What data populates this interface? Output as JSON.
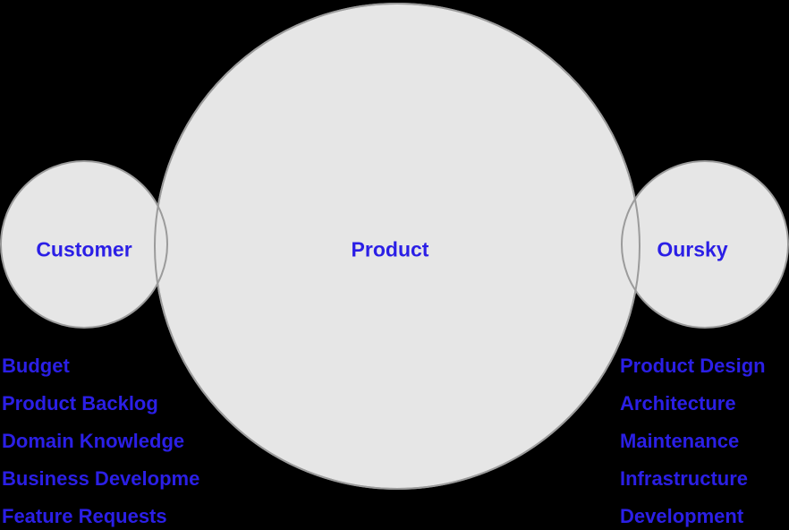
{
  "diagram": {
    "circles": [
      {
        "id": "customer",
        "label": "Customer"
      },
      {
        "id": "product",
        "label": "Product"
      },
      {
        "id": "oursky",
        "label": "Oursky"
      }
    ],
    "customer_items": [
      "Budget",
      "Product Backlog",
      "Domain Knowledge",
      "Business Developme",
      "Feature Requests"
    ],
    "oursky_items": [
      "Product Design",
      "Architecture",
      "Maintenance",
      "Infrastructure",
      "Development"
    ],
    "colors": {
      "text": "#2b1fe6",
      "circle_fill": "#e6e6e6",
      "circle_stroke": "#9b9b9b",
      "background": "#000000"
    }
  }
}
